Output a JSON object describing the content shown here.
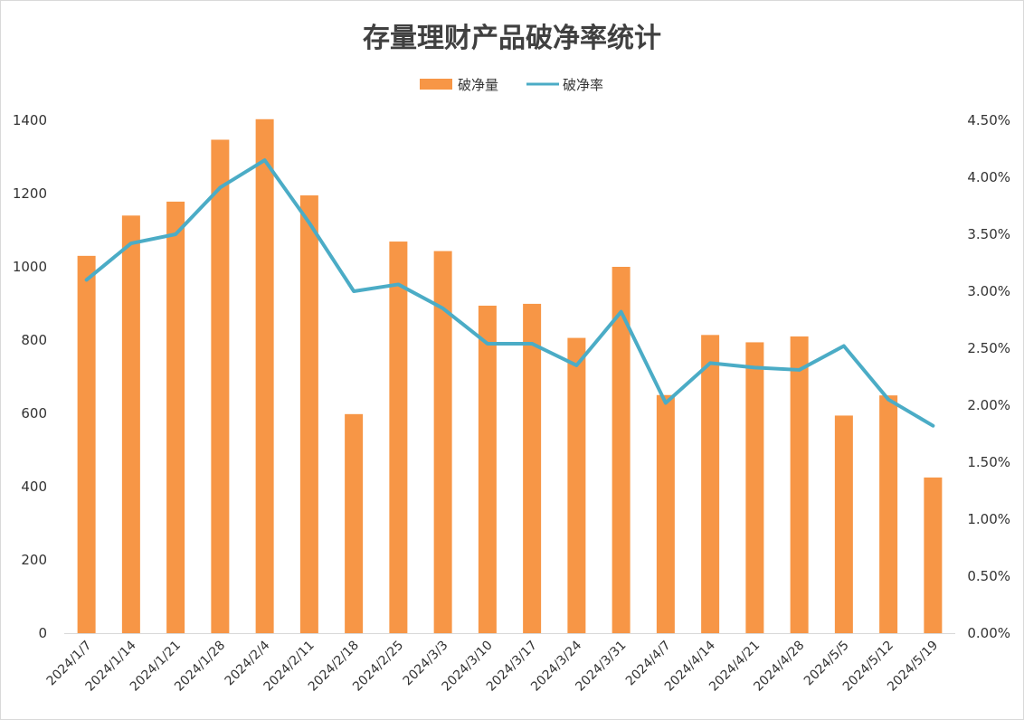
{
  "chart_data": {
    "type": "bar",
    "title": "存量理财产品破净率统计",
    "categories": [
      "2024/1/7",
      "2024/1/14",
      "2024/1/21",
      "2024/1/28",
      "2024/2/4",
      "2024/2/11",
      "2024/2/18",
      "2024/2/25",
      "2024/3/3",
      "2024/3/10",
      "2024/3/17",
      "2024/3/24",
      "2024/3/31",
      "2024/4/7",
      "2024/4/14",
      "2024/4/21",
      "2024/4/28",
      "2024/5/5",
      "2024/5/12",
      "2024/5/19"
    ],
    "series": [
      {
        "name": "破净量",
        "type": "bar",
        "axis": "left",
        "color": "#f79646",
        "values": [
          1030,
          1140,
          1178,
          1347,
          1403,
          1195,
          598,
          1069,
          1043,
          894,
          899,
          806,
          1000,
          650,
          814,
          794,
          810,
          594,
          649,
          425
        ]
      },
      {
        "name": "破净率",
        "type": "line",
        "axis": "right",
        "color": "#4bacc6",
        "values": [
          3.1,
          3.42,
          3.5,
          3.91,
          4.15,
          3.6,
          3.0,
          3.06,
          2.85,
          2.54,
          2.54,
          2.35,
          2.82,
          2.02,
          2.37,
          2.33,
          2.31,
          2.52,
          2.05,
          1.82
        ]
      }
    ],
    "y_left": {
      "ylim": [
        0,
        1400
      ],
      "ticks": [
        "0",
        "200",
        "400",
        "600",
        "800",
        "1000",
        "1200",
        "1400"
      ]
    },
    "y_right": {
      "ylim": [
        0,
        4.5
      ],
      "ticks": [
        "0.00%",
        "0.50%",
        "1.00%",
        "1.50%",
        "2.00%",
        "2.50%",
        "3.00%",
        "3.50%",
        "4.00%",
        "4.50%"
      ]
    },
    "grid": false,
    "legend": "top-center"
  }
}
